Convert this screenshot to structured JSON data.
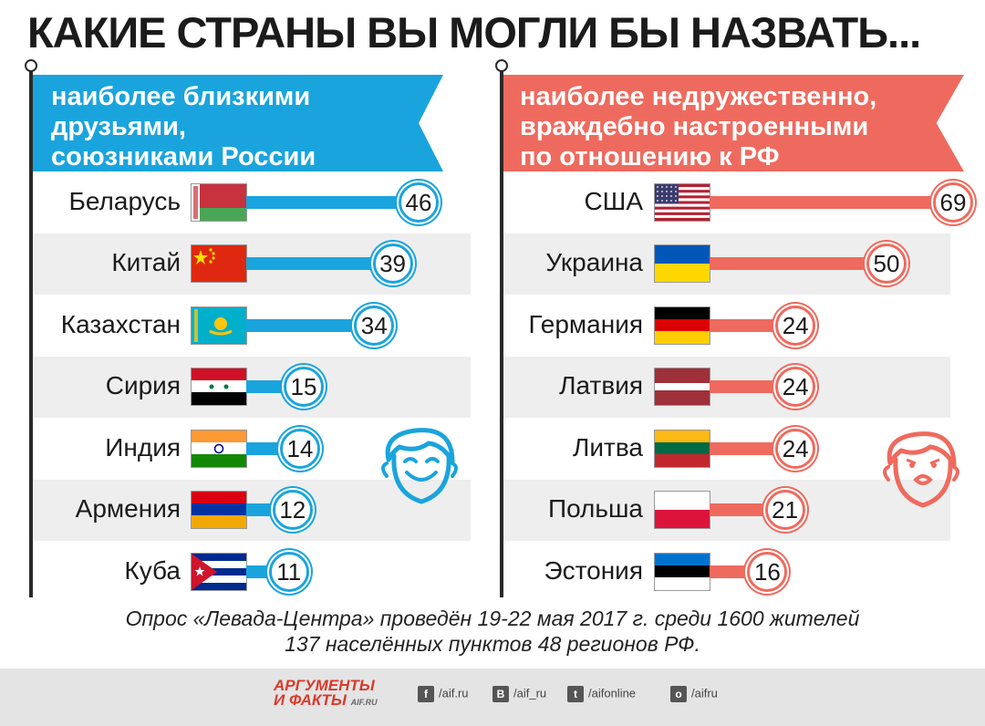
{
  "title": "КАКИЕ СТРАНЫ ВЫ МОГЛИ БЫ НАЗВАТЬ...",
  "colors": {
    "friends": "#1aa4dd",
    "enemies": "#ef6a5e"
  },
  "chart_data": [
    {
      "type": "bar",
      "title": "наиболее близкими\nдрузьями,\nсоюзниками России",
      "categories": [
        "Беларусь",
        "Китай",
        "Казахстан",
        "Сирия",
        "Индия",
        "Армения",
        "Куба"
      ],
      "values": [
        46,
        39,
        34,
        15,
        14,
        12,
        11
      ],
      "flags": [
        "belarus",
        "china",
        "kazakhstan",
        "syria",
        "india",
        "armenia",
        "cuba"
      ],
      "face_icon": "smiling-face-icon"
    },
    {
      "type": "bar",
      "title": "наиболее недружественно,\nвраждебно настроенными\nпо отношению к РФ",
      "categories": [
        "США",
        "Украина",
        "Германия",
        "Латвия",
        "Литва",
        "Польша",
        "Эстония"
      ],
      "values": [
        69,
        50,
        24,
        24,
        24,
        21,
        16
      ],
      "flags": [
        "usa",
        "ukraine",
        "germany",
        "latvia",
        "lithuania",
        "poland",
        "estonia"
      ],
      "face_icon": "scared-face-icon"
    }
  ],
  "footnote": {
    "line1": "Опрос «Левада-Центра» проведён 19-22 мая 2017 г. среди 1600 жителей",
    "line2": "137 населённых пунктов 48 регионов РФ."
  },
  "footer": {
    "logo_line1": "АРГУМЕНТЫ",
    "logo_line2": "И ФАКТЫ",
    "logo_site": "AIF.RU",
    "social": [
      {
        "icon": "facebook-icon",
        "glyph": "f",
        "label": "/aif.ru"
      },
      {
        "icon": "vk-icon",
        "glyph": "B",
        "label": "/aif_ru"
      },
      {
        "icon": "twitter-icon",
        "glyph": "t",
        "label": "/aifonline"
      },
      {
        "icon": "odnoklassniki-icon",
        "glyph": "о",
        "label": "/aifru"
      }
    ]
  }
}
